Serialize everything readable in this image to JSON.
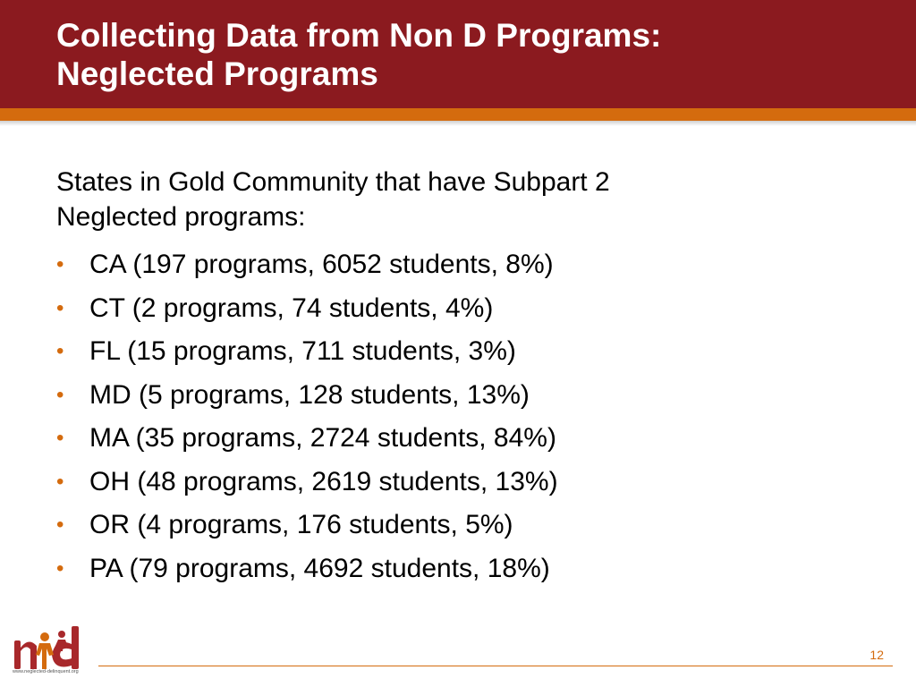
{
  "title": {
    "line1": "Collecting Data from Non D Programs:",
    "line2": "Neglected Programs"
  },
  "intro": {
    "line1": "States in Gold Community that have Subpart 2",
    "line2": "Neglected programs:"
  },
  "bullets": [
    "CA (197 programs, 6052 students, 8%)",
    "CT (2 programs, 74 students, 4%)",
    "FL (15 programs, 711 students, 3%)",
    "MD (5 programs, 128 students, 13%)",
    "MA (35 programs, 2724 students, 84%)",
    "OH (48 programs, 2619 students, 13%)",
    "OR (4 programs, 176 students, 5%)",
    "PA (79 programs, 4692 students, 18%)"
  ],
  "footer": {
    "logo_url": "www.neglected-delinquent.org",
    "page_number": "12"
  },
  "colors": {
    "title_bar": "#8b1a1f",
    "accent": "#d46b0e"
  }
}
